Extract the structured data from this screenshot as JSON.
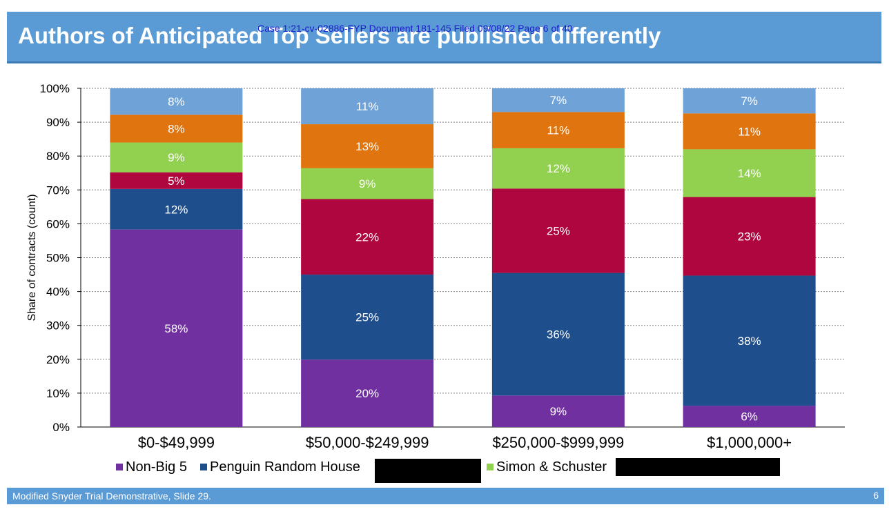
{
  "slide": {
    "title": "Authors of Anticipated Top Sellers are published differently",
    "case_header": "Case 1:21-cv-02886-FYP   Document 181-145   Filed 09/08/22   Page 6 of 40",
    "footer_text": "Modified Snyder Trial Demonstrative, Slide 29.",
    "page_number": "6"
  },
  "colors": {
    "title_bar": "#5b9bd5",
    "non_big5": "#7030a0",
    "prh": "#1f4e8c",
    "redacted_red": "#b0063f",
    "simon_schuster": "#92d050",
    "redacted_orange": "#e0740f",
    "redacted_blue": "#6fa3d8"
  },
  "chart_data": {
    "type": "bar",
    "stacked": true,
    "title": "",
    "xlabel": "",
    "ylabel": "Share of contracts (count)",
    "ylim": [
      0,
      100
    ],
    "yticks": [
      "0%",
      "10%",
      "20%",
      "30%",
      "40%",
      "50%",
      "60%",
      "70%",
      "80%",
      "90%",
      "100%"
    ],
    "grid": true,
    "categories": [
      "$0-$49,999",
      "$50,000-$249,999",
      "$250,000-$999,999",
      "$1,000,000+"
    ],
    "series": [
      {
        "name": "Non-Big 5",
        "color": "#7030a0",
        "values": [
          58.3,
          19.9,
          9.3,
          6.3
        ],
        "labels": [
          "58%",
          "20%",
          "9%",
          "6%"
        ]
      },
      {
        "name": "Penguin Random House",
        "color": "#1f4e8c",
        "values": [
          12.0,
          25.1,
          36.2,
          38.4
        ],
        "labels": [
          "12%",
          "25%",
          "36%",
          "38%"
        ]
      },
      {
        "name": "",
        "color": "#b0063f",
        "values": [
          4.9,
          22.3,
          24.9,
          23.2
        ],
        "labels": [
          "5%",
          "22%",
          "25%",
          "23%"
        ]
      },
      {
        "name": "Simon & Schuster",
        "color": "#92d050",
        "values": [
          8.8,
          9.1,
          11.9,
          14.1
        ],
        "labels": [
          "9%",
          "9%",
          "12%",
          "14%"
        ]
      },
      {
        "name": "",
        "color": "#e0740f",
        "values": [
          8.2,
          13.0,
          10.7,
          10.6
        ],
        "labels": [
          "8%",
          "13%",
          "11%",
          "11%"
        ]
      },
      {
        "name": "",
        "color": "#6fa3d8",
        "values": [
          7.8,
          10.6,
          7.0,
          7.4
        ],
        "labels": [
          "8%",
          "11%",
          "7%",
          "7%"
        ]
      }
    ],
    "legend": {
      "placement": "bottom",
      "items": [
        {
          "label": "Non-Big 5",
          "color": "#7030a0",
          "redacted": false
        },
        {
          "label": "Penguin Random House",
          "color": "#1f4e8c",
          "redacted": false
        },
        {
          "label": "",
          "color": "#000000",
          "redacted": true
        },
        {
          "label": "Simon & Schuster",
          "color": "#92d050",
          "redacted": false
        },
        {
          "label": "",
          "color": "#000000",
          "redacted": true
        }
      ]
    }
  }
}
